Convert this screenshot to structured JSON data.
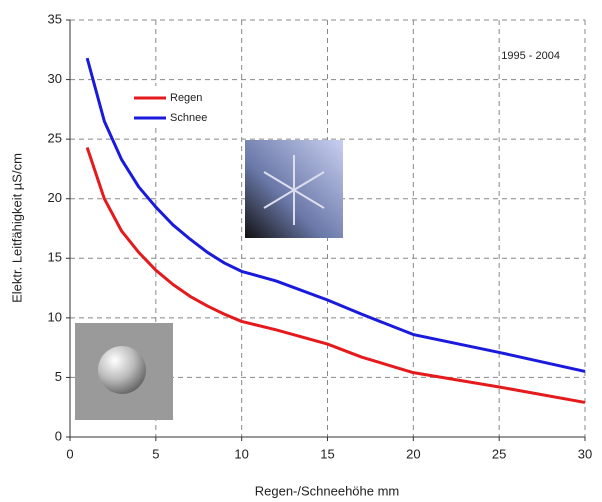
{
  "chart_data": {
    "type": "line",
    "annotation": "1995 - 2004",
    "x_label": "Regen-/Schneehöhe mm",
    "y_label": "Elektr. Leitfähigkeit µS/cm",
    "x": [
      1,
      2,
      3,
      4,
      5,
      6,
      7,
      8,
      9,
      10,
      12,
      15,
      17,
      20,
      25,
      30
    ],
    "series": [
      {
        "name": "Regen",
        "color": "#e41a1c",
        "values": [
          24.3,
          20,
          17.3,
          15.5,
          14,
          12.8,
          11.8,
          11,
          10.3,
          9.7,
          9,
          7.8,
          6.7,
          5.4,
          4.2,
          2.9
        ]
      },
      {
        "name": "Schnee",
        "color": "#1a1adc",
        "values": [
          31.8,
          26.5,
          23.3,
          21,
          19.3,
          17.8,
          16.6,
          15.5,
          14.6,
          13.9,
          13.1,
          11.5,
          10.3,
          8.6,
          7.1,
          5.5
        ]
      }
    ],
    "xlim": [
      0,
      30
    ],
    "xticks": [
      0,
      5,
      10,
      15,
      20,
      25,
      30
    ],
    "ylim": [
      0,
      35
    ],
    "yticks": [
      0,
      5,
      10,
      15,
      20,
      25,
      30,
      35
    ],
    "grid": true
  }
}
